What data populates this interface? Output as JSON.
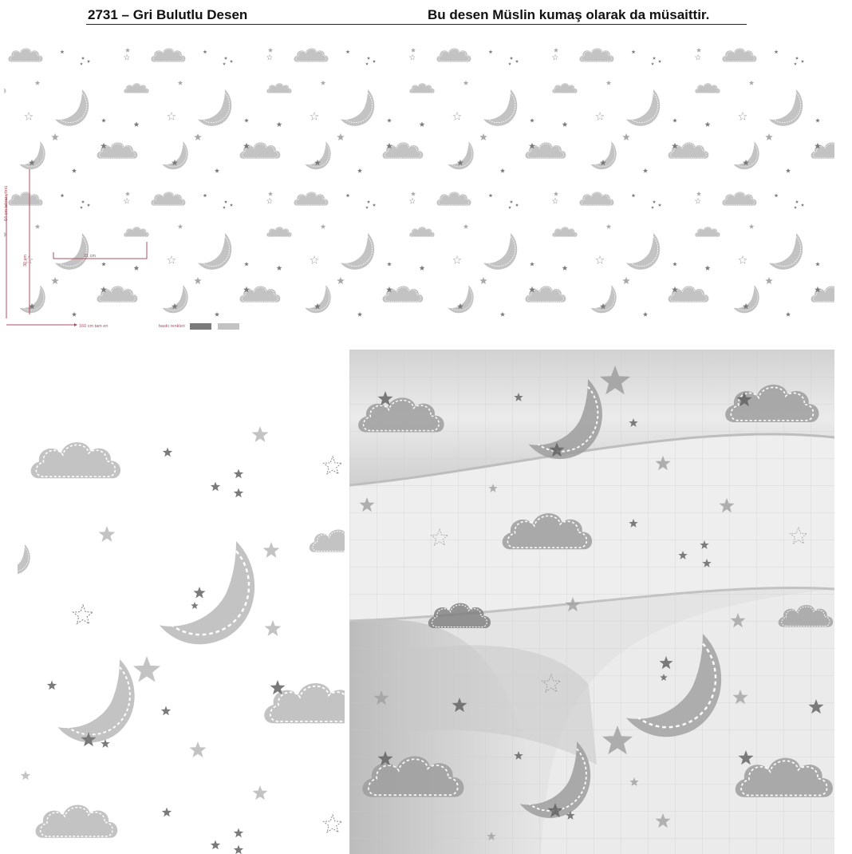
{
  "header": {
    "left": "2731 – Gri Bulutlu Desen",
    "right": "Bu desen Müslin kumaş olarak da müsaittir."
  },
  "pattern": {
    "motifs": [
      "cloud-icon",
      "moon-icon",
      "star-icon",
      "outline-star-icon"
    ],
    "colors": {
      "light_gray": "#c3c3c3",
      "dark_gray": "#7a7a7a",
      "mid_gray": "#a8a8a8",
      "fabric_bg": "#e5e5e5"
    }
  },
  "tech_sheet": {
    "height_label": "30 cm",
    "height_note": "64 cm tekrar yönü",
    "width_label": "21 cm",
    "bottom_label": "160 cm tam en",
    "colors_label": "baskı renkleri",
    "color_swatches": [
      "#7a7a7a",
      "#c3c3c3"
    ]
  }
}
